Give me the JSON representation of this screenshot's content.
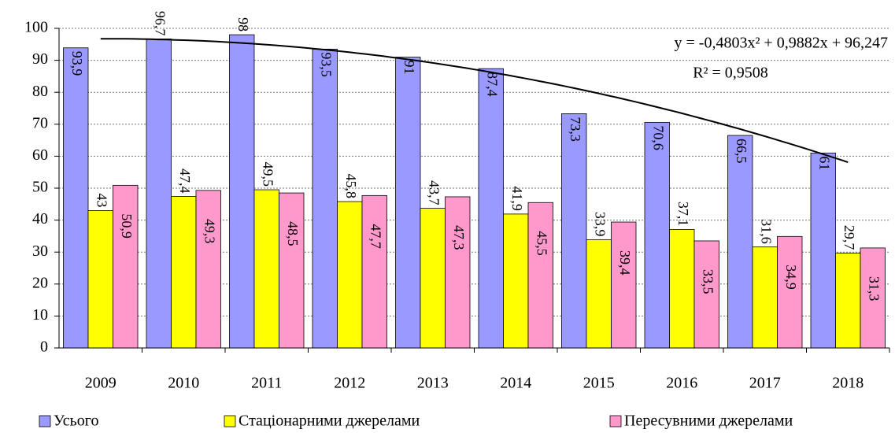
{
  "chart_data": {
    "type": "bar",
    "categories": [
      "2009",
      "2010",
      "2011",
      "2012",
      "2013",
      "2014",
      "2015",
      "2016",
      "2017",
      "2018"
    ],
    "series": [
      {
        "name": "Усього",
        "color": "#9999ff",
        "values": [
          93.9,
          96.7,
          98,
          93.5,
          91,
          87.4,
          73.3,
          70.6,
          66.5,
          61
        ],
        "value_labels": [
          "93,9",
          "96,7",
          "98",
          "93,5",
          "91",
          "87,4",
          "73,3",
          "70,6",
          "66,5",
          "61"
        ]
      },
      {
        "name": "Стаціонарними джерелами",
        "color": "#ffff00",
        "values": [
          43,
          47.4,
          49.5,
          45.8,
          43.7,
          41.9,
          33.9,
          37.1,
          31.6,
          29.7
        ],
        "value_labels": [
          "43",
          "47,4",
          "49,5",
          "45,8",
          "43,7",
          "41,9",
          "33,9",
          "37,1",
          "31,6",
          "29,7"
        ]
      },
      {
        "name": "Пересувними джерелами",
        "color": "#ff99cc",
        "values": [
          50.9,
          49.3,
          48.5,
          47.7,
          47.3,
          45.5,
          39.4,
          33.5,
          34.9,
          31.3
        ],
        "value_labels": [
          "50,9",
          "49,3",
          "48,5",
          "47,7",
          "47,3",
          "45,5",
          "39,4",
          "33,5",
          "34,9",
          "31,3"
        ]
      }
    ],
    "ylim": [
      0,
      100
    ],
    "yticks": [
      0,
      10,
      20,
      30,
      40,
      50,
      60,
      70,
      80,
      90,
      100
    ],
    "grid": true,
    "legend": "bottom",
    "trendline": {
      "type": "polynomial",
      "coefficients": [
        -0.4803,
        0.9882,
        96.247
      ],
      "equation": "y = -0,4803x² + 0,9882x + 96,247",
      "r2_label": "R² = 0,9508"
    }
  }
}
